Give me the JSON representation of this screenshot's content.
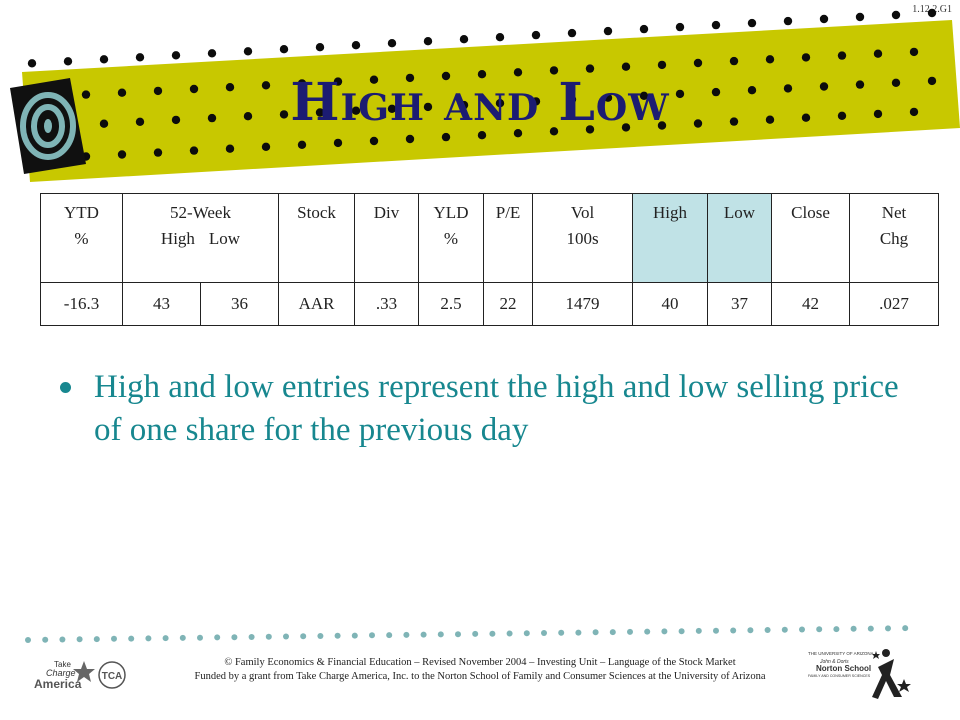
{
  "slide_code": "1.12.2.G1",
  "title": "High and Low",
  "table": {
    "headers": [
      {
        "lines": [
          "YTD",
          "%"
        ]
      },
      {
        "lines": [
          "52-Week"
        ],
        "sub": [
          "High",
          "Low"
        ]
      },
      {
        "lines": [
          "Stock"
        ]
      },
      {
        "lines": [
          "Div"
        ]
      },
      {
        "lines": [
          "YLD",
          "%"
        ]
      },
      {
        "lines": [
          "P/E"
        ]
      },
      {
        "lines": [
          "Vol",
          "100s"
        ]
      },
      {
        "lines": [
          "High"
        ]
      },
      {
        "lines": [
          "Low"
        ]
      },
      {
        "lines": [
          "Close"
        ]
      },
      {
        "lines": [
          "Net",
          "Chg"
        ]
      }
    ],
    "row": [
      "-16.3",
      "43",
      "36",
      "AAR",
      ".33",
      "2.5",
      "22",
      "1479",
      "40",
      "37",
      "42",
      ".027"
    ],
    "highlight_color": "#c0e2e6"
  },
  "bullets": [
    "High and low entries represent the high and low selling price of one share for the previous day"
  ],
  "footer": {
    "line1": "© Family Economics & Financial Education – Revised November 2004 – Investing Unit – Language of the Stock Market",
    "line2": "Funded by a grant from Take Charge America, Inc. to the Norton School of Family and Consumer Sciences at the University of Arizona"
  },
  "logos": {
    "take_charge": {
      "word1": "Take",
      "word2": "Charge",
      "word3": "America",
      "badge": "TCA"
    },
    "norton": {
      "line1": "THE UNIVERSITY OF ARIZONA",
      "line2": "John & Doris",
      "line3": "Norton School",
      "line4": "FAMILY AND CONSUMER SCIENCES"
    }
  },
  "colors": {
    "banner": "#c8c800",
    "title": "#1c1c72",
    "bullet_text": "#17878f",
    "target_icon": "#7fb4b6"
  }
}
